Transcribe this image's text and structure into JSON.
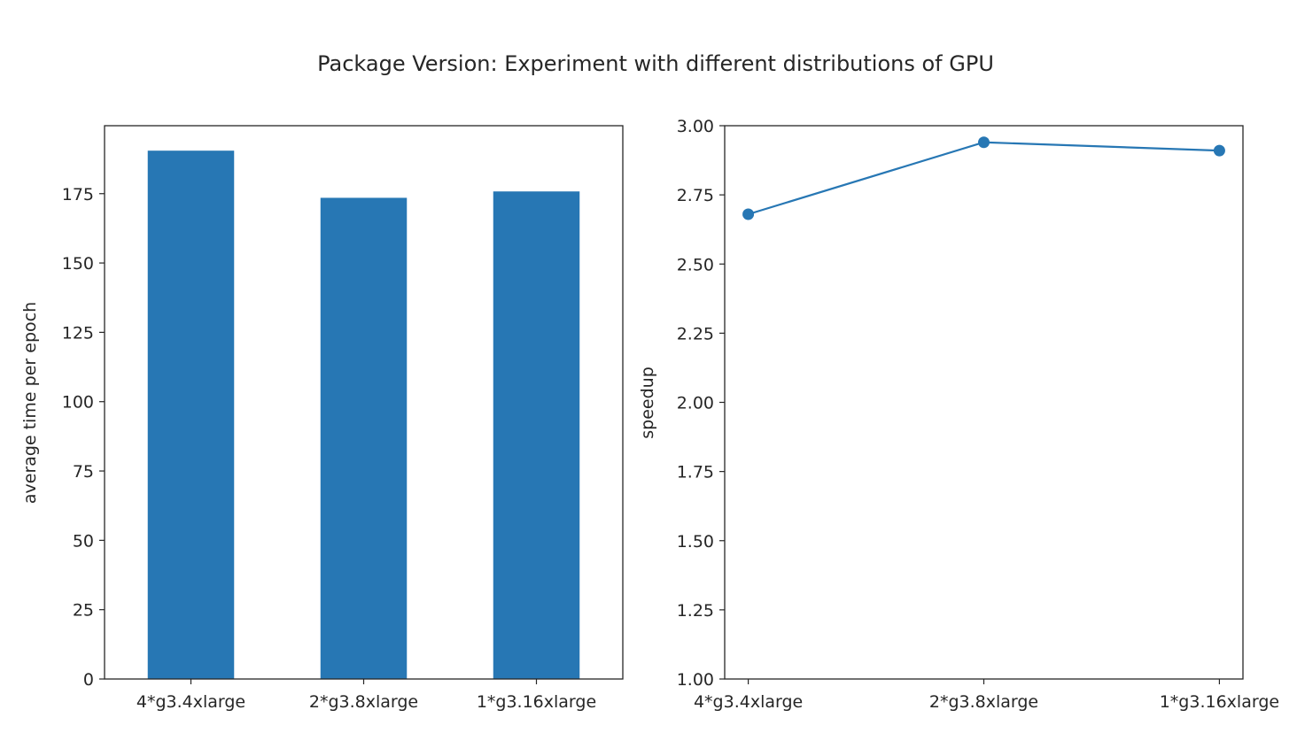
{
  "figure": {
    "suptitle": "Package Version: Experiment with different distributions of GPU"
  },
  "colors": {
    "series": "#2777b4",
    "axes": "#262626",
    "background": "#ffffff"
  },
  "chart_data": [
    {
      "type": "bar",
      "categories": [
        "4*g3.4xlarge",
        "2*g3.8xlarge",
        "1*g3.16xlarge"
      ],
      "values": [
        190.5,
        173.5,
        175.8
      ],
      "title": "",
      "xlabel": "",
      "ylabel": "average time per epoch",
      "ylim": [
        0,
        199.5
      ],
      "yticks": [
        0,
        25,
        50,
        75,
        100,
        125,
        150,
        175
      ],
      "ytick_labels": [
        "0",
        "25",
        "50",
        "75",
        "100",
        "125",
        "150",
        "175"
      ],
      "grid": false,
      "color": "#2777b4"
    },
    {
      "type": "line",
      "categories": [
        "4*g3.4xlarge",
        "2*g3.8xlarge",
        "1*g3.16xlarge"
      ],
      "values": [
        2.68,
        2.94,
        2.91
      ],
      "title": "",
      "xlabel": "",
      "ylabel": "speedup",
      "ylim": [
        1.0,
        3.0
      ],
      "yticks": [
        1.0,
        1.25,
        1.5,
        1.75,
        2.0,
        2.25,
        2.5,
        2.75,
        3.0
      ],
      "ytick_labels": [
        "1.00",
        "1.25",
        "1.50",
        "1.75",
        "2.00",
        "2.25",
        "2.50",
        "2.75",
        "3.00"
      ],
      "markers": "circle",
      "grid": false,
      "color": "#2777b4"
    }
  ]
}
